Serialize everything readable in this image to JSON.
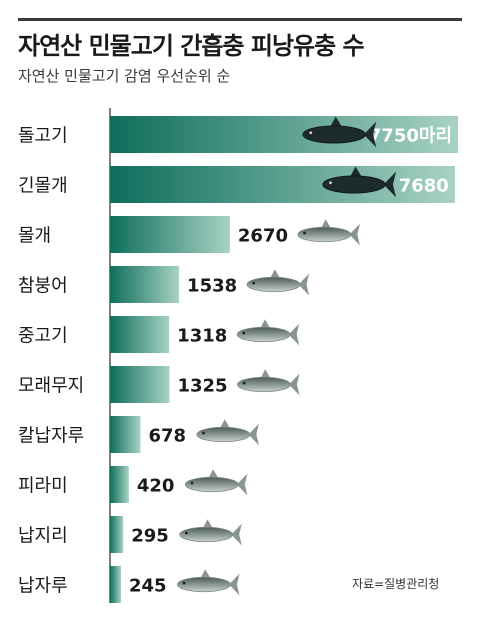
{
  "header": {
    "title": "자연산 민물고기 간흡충 피낭유충 수",
    "subtitle": "자연산 민물고기 감염 우선순위 순"
  },
  "source": "자료=질병관리청",
  "colors": {
    "bar_dark": "#0f6e5c",
    "bar_light": "#a8d2c4",
    "text": "#1a1a1a"
  },
  "chart_data": {
    "type": "bar",
    "orientation": "horizontal",
    "categories": [
      "돌고기",
      "긴몰개",
      "몰개",
      "참붕어",
      "중고기",
      "모래무지",
      "칼납자루",
      "피라미",
      "납지리",
      "납자루"
    ],
    "values": [
      7750,
      7680,
      2670,
      1538,
      1318,
      1325,
      678,
      420,
      295,
      245
    ],
    "value_labels": [
      "7750마리",
      "7680",
      "2670",
      "1538",
      "1318",
      "1325",
      "678",
      "420",
      "295",
      "245"
    ],
    "title": "자연산 민물고기 간흡충 피낭유충 수",
    "subtitle": "자연산 민물고기 감염 우선순위 순",
    "grid": false,
    "legend": "none"
  }
}
